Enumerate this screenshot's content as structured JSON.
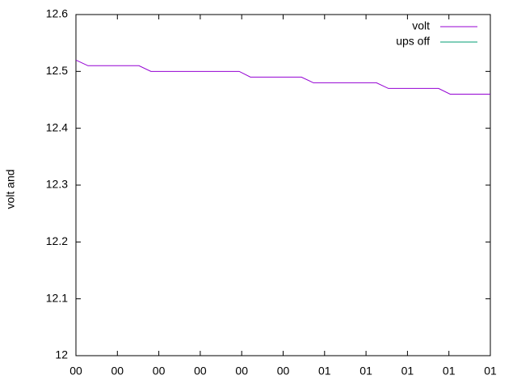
{
  "chart_data": {
    "type": "line",
    "ylabel": "volt and",
    "xlim": [
      0,
      10
    ],
    "xticks": [
      {
        "value": 0,
        "label": "00"
      },
      {
        "value": 1,
        "label": "00"
      },
      {
        "value": 2,
        "label": "00"
      },
      {
        "value": 3,
        "label": "00"
      },
      {
        "value": 4,
        "label": "00"
      },
      {
        "value": 5,
        "label": "00"
      },
      {
        "value": 6,
        "label": "01"
      },
      {
        "value": 7,
        "label": "01"
      },
      {
        "value": 8,
        "label": "01"
      },
      {
        "value": 9,
        "label": "01"
      },
      {
        "value": 10,
        "label": "01"
      }
    ],
    "ylim": [
      12,
      12.6
    ],
    "yticks": [
      12,
      12.1,
      12.2,
      12.3,
      12.4,
      12.5,
      12.6
    ],
    "legend": "top-right",
    "series": [
      {
        "name": "volt",
        "color": "#9400d3",
        "x": [
          0,
          0.29,
          1.52,
          1.81,
          3.94,
          4.21,
          5.44,
          5.73,
          7.25,
          7.54,
          8.75,
          9.03,
          10
        ],
        "values": [
          12.52,
          12.51,
          12.51,
          12.5,
          12.5,
          12.49,
          12.49,
          12.48,
          12.48,
          12.47,
          12.47,
          12.46,
          12.46
        ]
      },
      {
        "name": "ups off",
        "color": "#009e73",
        "x": [],
        "values": []
      }
    ]
  }
}
